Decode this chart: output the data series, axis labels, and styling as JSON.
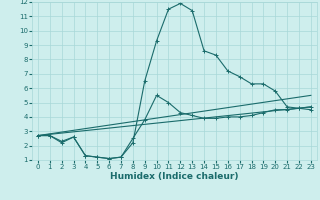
{
  "xlabel": "Humidex (Indice chaleur)",
  "bg_color": "#ceeeed",
  "grid_color": "#a8d8d8",
  "line_color": "#1a6b6b",
  "xlim": [
    -0.5,
    23.5
  ],
  "ylim": [
    1,
    12
  ],
  "xticks": [
    0,
    1,
    2,
    3,
    4,
    5,
    6,
    7,
    8,
    9,
    10,
    11,
    12,
    13,
    14,
    15,
    16,
    17,
    18,
    19,
    20,
    21,
    22,
    23
  ],
  "yticks": [
    1,
    2,
    3,
    4,
    5,
    6,
    7,
    8,
    9,
    10,
    11,
    12
  ],
  "lines": [
    {
      "x": [
        0,
        1,
        2,
        3,
        4,
        5,
        6,
        7,
        8,
        9,
        10,
        11,
        12,
        13,
        14,
        15,
        16,
        17,
        18,
        19,
        20,
        21,
        22,
        23
      ],
      "y": [
        2.7,
        2.7,
        2.2,
        2.6,
        1.3,
        1.2,
        1.1,
        1.2,
        2.2,
        6.5,
        9.3,
        11.5,
        11.9,
        11.4,
        8.6,
        8.3,
        7.2,
        6.8,
        6.3,
        6.3,
        5.8,
        4.7,
        4.6,
        4.5
      ],
      "marker": "+"
    },
    {
      "x": [
        0,
        1,
        2,
        3,
        4,
        5,
        6,
        7,
        8,
        9,
        10,
        11,
        12,
        13,
        14,
        15,
        16,
        17,
        18,
        19,
        20,
        21,
        22,
        23
      ],
      "y": [
        2.7,
        2.7,
        2.3,
        2.6,
        1.3,
        1.2,
        1.1,
        1.2,
        2.5,
        3.8,
        5.5,
        5.0,
        4.3,
        4.1,
        3.9,
        3.9,
        4.0,
        4.0,
        4.1,
        4.3,
        4.5,
        4.5,
        4.6,
        4.7
      ],
      "marker": "+"
    },
    {
      "x": [
        0,
        23
      ],
      "y": [
        2.7,
        4.7
      ],
      "marker": null
    },
    {
      "x": [
        0,
        23
      ],
      "y": [
        2.7,
        5.5
      ],
      "marker": null
    }
  ]
}
